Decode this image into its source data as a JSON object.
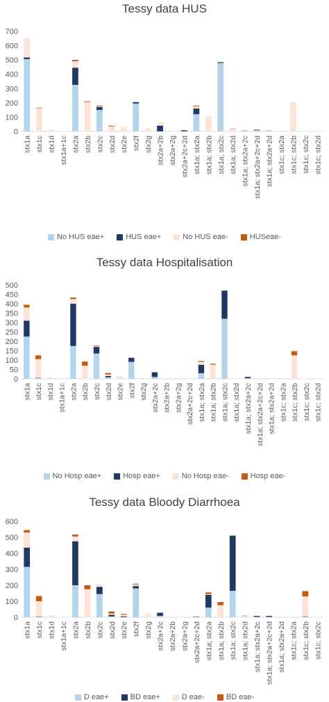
{
  "chart_data": [
    {
      "type": "bar",
      "stacked": true,
      "title": "Tessy data HUS",
      "ylim": [
        0,
        700
      ],
      "yticks": [
        0,
        100,
        200,
        300,
        400,
        500,
        600,
        700
      ],
      "grid": false,
      "legend_position": "bottom",
      "categories": [
        "stx1a",
        "stx1c",
        "stx1d",
        "stx1a+1c",
        "stx2a",
        "stx2b",
        "stx2c",
        "stx2d",
        "stx2e",
        "stx2f",
        "stx2g",
        "stx2a+2b",
        "stx2a+2g",
        "stx2a+2c+2d",
        "stx1a; stx2a",
        "stx1a; stx2b",
        "stx1a; stx2c",
        "stx1a; stx2d",
        "stx1a; stx2a+2c",
        "stx1a; stx2a+2c+2d",
        "stx1a; stx2a+2d",
        "stx1c; stx2a",
        "stx1c; stx2b",
        "stx1c; stx2c",
        "stx1c; stx2d"
      ],
      "series": [
        {
          "name": "No HUS eae+",
          "color": "#b4d4ec",
          "values": [
            505,
            0,
            0,
            0,
            325,
            0,
            150,
            0,
            0,
            195,
            0,
            0,
            0,
            0,
            120,
            0,
            478,
            0,
            8,
            8,
            0,
            0,
            0,
            0,
            0
          ]
        },
        {
          "name": "HUS eae+",
          "color": "#1f3864",
          "values": [
            12,
            0,
            0,
            0,
            120,
            0,
            20,
            0,
            0,
            10,
            0,
            40,
            0,
            7,
            40,
            0,
            6,
            0,
            0,
            4,
            0,
            0,
            0,
            0,
            0
          ]
        },
        {
          "name": "No HUS eae-",
          "color": "#fbe3d6",
          "values": [
            135,
            162,
            12,
            0,
            45,
            205,
            5,
            35,
            30,
            0,
            22,
            22,
            0,
            0,
            15,
            105,
            0,
            15,
            4,
            0,
            4,
            0,
            205,
            0,
            0
          ]
        },
        {
          "name": "HUSeae-",
          "color": "#c55a11",
          "values": [
            0,
            3,
            0,
            0,
            10,
            5,
            5,
            5,
            0,
            0,
            0,
            0,
            0,
            0,
            5,
            0,
            0,
            2,
            0,
            0,
            2,
            0,
            0,
            0,
            0
          ]
        }
      ]
    },
    {
      "type": "bar",
      "stacked": true,
      "title": "Tessy data Hospitalisation",
      "ylim": [
        0,
        500
      ],
      "yticks": [
        0,
        50,
        100,
        150,
        200,
        250,
        300,
        350,
        400,
        450,
        500
      ],
      "grid": false,
      "legend_position": "bottom",
      "categories": [
        "stx1a",
        "stx1c",
        "stx1d",
        "stx1a+1c",
        "stx2a",
        "stx2b",
        "stx2c",
        "stx2d",
        "stx2e",
        "stx2f",
        "stx2g",
        "stx2a+2c",
        "stx2a+2b",
        "stx2a+2g",
        "stx2a+2c+2d",
        "stx1a; stx2a",
        "stx1a; stx2b",
        "stx1a; stx2c",
        "stx1a; stx2d",
        "stx1a; stx2a+2c",
        "stx1a; stx2a+2c+2d",
        "stx1a; stx2a+2d",
        "stx1c; stx2a",
        "stx1c; stx2b",
        "stx1c; stx2c",
        "stx1c; stx2d"
      ],
      "series": [
        {
          "name": "No Hosp eae+",
          "color": "#b4d4ec",
          "values": [
            225,
            3,
            0,
            0,
            175,
            0,
            135,
            8,
            0,
            90,
            0,
            10,
            0,
            0,
            0,
            30,
            0,
            320,
            0,
            3,
            0,
            0,
            0,
            0,
            0,
            0
          ]
        },
        {
          "name": "Hosp eae+",
          "color": "#1f3864",
          "values": [
            85,
            2,
            0,
            0,
            225,
            0,
            35,
            7,
            0,
            22,
            0,
            25,
            0,
            0,
            0,
            45,
            0,
            150,
            0,
            7,
            0,
            0,
            0,
            0,
            0,
            0
          ]
        },
        {
          "name": "No Hosp eae-",
          "color": "#fbe3d6",
          "values": [
            70,
            100,
            8,
            0,
            25,
            70,
            5,
            8,
            15,
            0,
            5,
            0,
            0,
            5,
            0,
            15,
            75,
            0,
            3,
            0,
            0,
            3,
            0,
            125,
            0,
            0
          ]
        },
        {
          "name": "Hosp eae-",
          "color": "#c55a11",
          "values": [
            15,
            20,
            0,
            0,
            8,
            22,
            3,
            8,
            0,
            0,
            0,
            0,
            0,
            0,
            0,
            5,
            5,
            0,
            0,
            0,
            0,
            0,
            0,
            22,
            0,
            0
          ]
        }
      ]
    },
    {
      "type": "bar",
      "stacked": true,
      "title": "Tessy data Bloody Diarrhoea",
      "ylim": [
        0,
        600
      ],
      "yticks": [
        0,
        100,
        200,
        300,
        400,
        500,
        600
      ],
      "grid": false,
      "legend_position": "bottom",
      "categories": [
        "stx1a",
        "stx1c",
        "stx1d",
        "stx1a+1c",
        "stx2a",
        "stx2b",
        "stx2c",
        "stx2d",
        "stx2e",
        "stx2f",
        "stx2g",
        "stx2a+2c",
        "stx2a+2b",
        "stx2a+2g",
        "stx2a+2c+2d",
        "stx1a; stx2a",
        "stx1a; stx2b",
        "stx1a; stx2c",
        "stx1a; stx2d",
        "stx1a; stx2a+2c",
        "stx1a; stx2a+2c+2d",
        "stx1a; stx2a+2d",
        "stx1c; stx2a",
        "stx1c; stx2b",
        "stx1c; stx2c"
      ],
      "series": [
        {
          "name": "D eae+",
          "color": "#b4d4ec",
          "values": [
            315,
            3,
            0,
            0,
            200,
            0,
            145,
            5,
            0,
            180,
            0,
            8,
            0,
            0,
            2,
            60,
            0,
            165,
            0,
            2,
            2,
            0,
            0,
            3,
            0
          ]
        },
        {
          "name": "BD eae+",
          "color": "#1f3864",
          "values": [
            120,
            2,
            0,
            0,
            275,
            0,
            45,
            10,
            5,
            15,
            0,
            20,
            0,
            0,
            2,
            80,
            0,
            345,
            0,
            6,
            6,
            0,
            0,
            2,
            0
          ]
        },
        {
          "name": "D eae-",
          "color": "#fbe3d6",
          "values": [
            95,
            95,
            12,
            0,
            30,
            175,
            15,
            8,
            10,
            10,
            22,
            0,
            0,
            3,
            0,
            5,
            75,
            0,
            8,
            0,
            0,
            0,
            0,
            125,
            0
          ]
        },
        {
          "name": "BD eae-",
          "color": "#c55a11",
          "values": [
            15,
            32,
            0,
            0,
            12,
            25,
            0,
            13,
            5,
            5,
            0,
            0,
            0,
            0,
            0,
            10,
            20,
            0,
            2,
            0,
            0,
            0,
            0,
            33,
            0
          ]
        }
      ]
    }
  ]
}
